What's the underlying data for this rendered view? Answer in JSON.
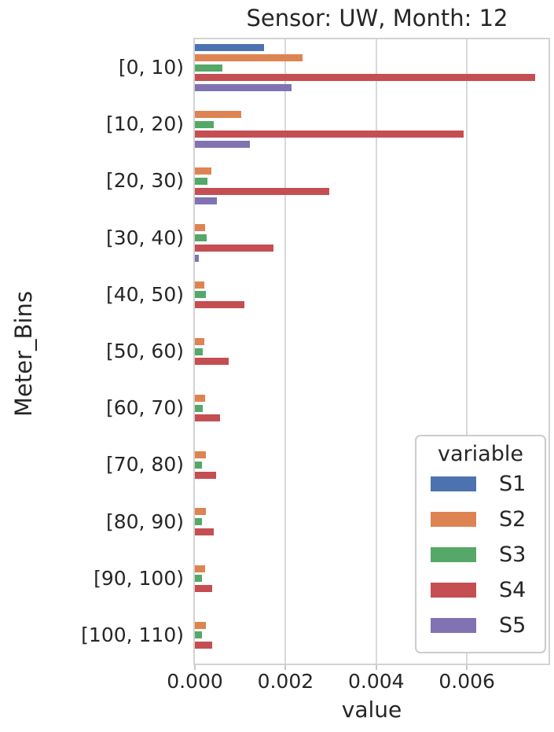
{
  "title": "Sensor: UW, Month: 12",
  "x_axis": {
    "label": "value",
    "tick_labels": [
      "0.000",
      "0.002",
      "0.004",
      "0.006"
    ],
    "tick_values": [
      0,
      0.002,
      0.004,
      0.006
    ]
  },
  "y_axis": {
    "label": "Meter_Bins"
  },
  "legend": {
    "title": "variable"
  },
  "chart_data": {
    "type": "bar",
    "orientation": "horizontal",
    "title": "Sensor: UW, Month: 12",
    "xlabel": "value",
    "ylabel": "Meter_Bins",
    "grid": true,
    "legend_title": "variable",
    "legend_position": "lower right",
    "xlim": [
      0,
      0.0078
    ],
    "xticks": [
      0,
      0.002,
      0.004,
      0.006
    ],
    "categories": [
      "[0, 10)",
      "[10, 20)",
      "[20, 30)",
      "[30, 40)",
      "[40, 50)",
      "[50, 60)",
      "[60, 70)",
      "[70, 80)",
      "[80, 90)",
      "[90, 100)",
      "[100, 110)"
    ],
    "series": [
      {
        "name": "S1",
        "color": "#4C72B0",
        "values": [
          0.00152,
          0,
          0,
          0,
          0,
          0,
          0,
          0,
          0,
          0,
          0
        ]
      },
      {
        "name": "S2",
        "color": "#DD8452",
        "values": [
          0.00238,
          0.00103,
          0.00036,
          0.00023,
          0.00021,
          0.00021,
          0.00022,
          0.00024,
          0.00024,
          0.00023,
          0.00025
        ]
      },
      {
        "name": "S3",
        "color": "#55A868",
        "values": [
          0.0006,
          0.00041,
          0.00028,
          0.00026,
          0.00024,
          0.00018,
          0.00017,
          0.00016,
          0.00015,
          0.00016,
          0.00015
        ]
      },
      {
        "name": "S4",
        "color": "#C44E52",
        "values": [
          0.0075,
          0.00592,
          0.00296,
          0.00174,
          0.0011,
          0.00074,
          0.00056,
          0.00047,
          0.00042,
          0.00038,
          0.00038
        ]
      },
      {
        "name": "S5",
        "color": "#8172B3",
        "values": [
          0.00214,
          0.00121,
          0.00048,
          8e-05,
          0,
          0,
          0,
          0,
          0,
          0,
          0
        ]
      }
    ]
  }
}
